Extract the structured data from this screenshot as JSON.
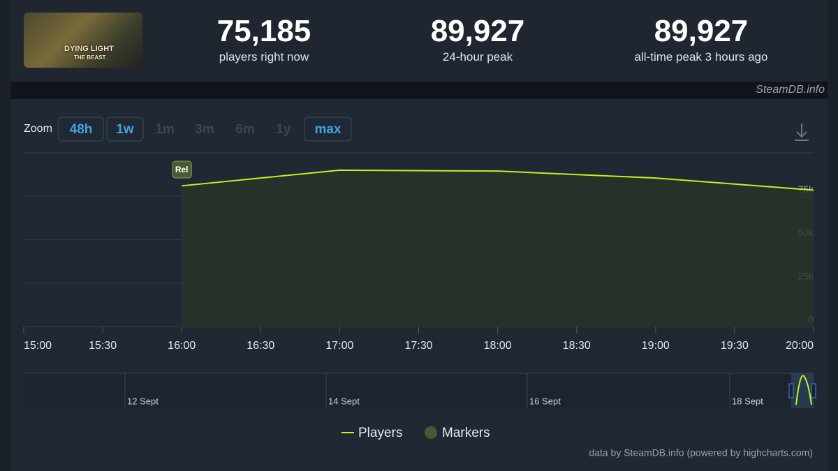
{
  "header": {
    "logo_line1": "DYING LIGHT",
    "logo_line2": "THE BEAST",
    "stats": [
      {
        "value": "75,185",
        "label": "players right now"
      },
      {
        "value": "89,927",
        "label": "24-hour peak"
      },
      {
        "value": "89,927",
        "label": "all-time peak 3 hours ago"
      }
    ],
    "watermark": "SteamDB.info"
  },
  "zoom": {
    "label": "Zoom",
    "buttons": [
      {
        "text": "48h",
        "active": true
      },
      {
        "text": "1w",
        "active": true
      },
      {
        "text": "1m",
        "active": false
      },
      {
        "text": "3m",
        "active": false
      },
      {
        "text": "6m",
        "active": false
      },
      {
        "text": "1y",
        "active": false
      },
      {
        "text": "max",
        "active": true
      }
    ]
  },
  "chart_data": {
    "type": "line",
    "x": [
      16,
      17,
      18,
      19,
      20
    ],
    "series": [
      {
        "name": "Players",
        "color": "#c6f01e",
        "values": [
          81000,
          90000,
          89500,
          85500,
          78500
        ]
      }
    ],
    "markers": {
      "name": "Markers",
      "color": "#4a5a30",
      "items": [
        {
          "x": 16,
          "label": "Rel"
        }
      ]
    },
    "xlim": [
      15,
      20
    ],
    "xticks": [
      {
        "value": 15,
        "label": "15:00"
      },
      {
        "value": 15.5,
        "label": "15:30"
      },
      {
        "value": 16,
        "label": "16:00"
      },
      {
        "value": 16.5,
        "label": "16:30"
      },
      {
        "value": 17,
        "label": "17:00"
      },
      {
        "value": 17.5,
        "label": "17:30"
      },
      {
        "value": 18,
        "label": "18:00"
      },
      {
        "value": 18.5,
        "label": "18:30"
      },
      {
        "value": 19,
        "label": "19:00"
      },
      {
        "value": 19.5,
        "label": "19:30"
      },
      {
        "value": 20,
        "label": "20:00"
      }
    ],
    "ylim": [
      0,
      100000
    ],
    "yticks": [
      0,
      {
        "value": 25000,
        "label": "25k"
      },
      {
        "value": 50000,
        "label": "50k"
      },
      {
        "value": 75000,
        "label": "75k"
      }
    ],
    "grid": true,
    "navigator_labels": [
      "12 Sept",
      "14 Sept",
      "16 Sept",
      "18 Sept"
    ],
    "credits": "data by SteamDB.info (powered by highcharts.com)"
  }
}
